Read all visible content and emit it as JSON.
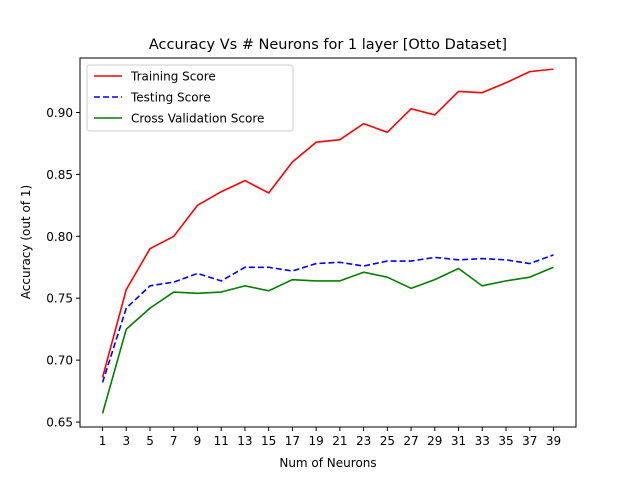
{
  "chart_data": {
    "type": "line",
    "title": "Accuracy Vs # Neurons for 1 layer [Otto Dataset]",
    "xlabel": "Num of Neurons",
    "ylabel": "Accuracy (out of 1)",
    "x": [
      1,
      3,
      5,
      7,
      9,
      11,
      13,
      15,
      17,
      19,
      21,
      23,
      25,
      27,
      29,
      31,
      33,
      35,
      37,
      39
    ],
    "xticks": [
      "1",
      "3",
      "5",
      "7",
      "9",
      "11",
      "13",
      "15",
      "17",
      "19",
      "21",
      "23",
      "25",
      "27",
      "29",
      "31",
      "33",
      "35",
      "37",
      "39"
    ],
    "yticks": [
      "0.65",
      "0.70",
      "0.75",
      "0.80",
      "0.85",
      "0.90"
    ],
    "ytick_values": [
      0.65,
      0.7,
      0.75,
      0.8,
      0.85,
      0.9
    ],
    "xlim": [
      -0.9,
      40.9
    ],
    "ylim": [
      0.646,
      0.944
    ],
    "grid": false,
    "legend": "top-left",
    "series": [
      {
        "name": "Training Score",
        "color": "#ff0000",
        "style": "solid",
        "values": [
          0.686,
          0.757,
          0.79,
          0.8,
          0.825,
          0.836,
          0.845,
          0.835,
          0.86,
          0.876,
          0.878,
          0.891,
          0.884,
          0.903,
          0.898,
          0.917,
          0.916,
          0.924,
          0.933,
          0.935
        ]
      },
      {
        "name": "Testing Score",
        "color": "#0000ff",
        "style": "dashed",
        "values": [
          0.682,
          0.742,
          0.76,
          0.763,
          0.77,
          0.764,
          0.775,
          0.775,
          0.772,
          0.778,
          0.779,
          0.776,
          0.78,
          0.78,
          0.783,
          0.781,
          0.782,
          0.781,
          0.778,
          0.785
        ]
      },
      {
        "name": "Cross Validation Score",
        "color": "#008000",
        "style": "solid",
        "values": [
          0.657,
          0.725,
          0.742,
          0.755,
          0.754,
          0.755,
          0.76,
          0.756,
          0.765,
          0.764,
          0.764,
          0.771,
          0.767,
          0.758,
          0.765,
          0.774,
          0.76,
          0.764,
          0.767,
          0.775
        ]
      }
    ]
  }
}
